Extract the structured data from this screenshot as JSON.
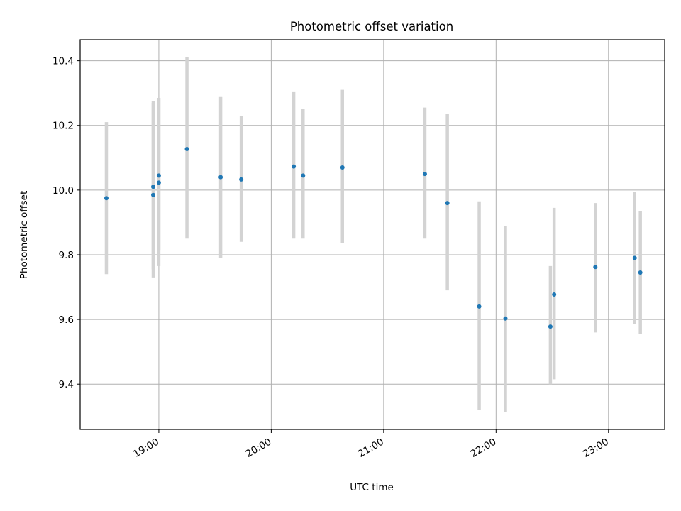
{
  "chart_data": {
    "type": "scatter",
    "title": "Photometric offset variation",
    "xlabel": "UTC time",
    "ylabel": "Photometric offset",
    "x_ticks": [
      "19:00",
      "20:00",
      "21:00",
      "22:00",
      "23:00"
    ],
    "y_ticks": [
      "9.4",
      "9.6",
      "9.8",
      "10.0",
      "10.2",
      "10.4"
    ],
    "xlim": [
      "18:18",
      "23:30"
    ],
    "ylim": [
      9.26,
      10.465
    ],
    "grid": true,
    "colors": {
      "points": "#1f77b4",
      "errorbars": "#d3d3d3",
      "grid": "#b0b0b0",
      "axes": "#000000"
    },
    "series": [
      {
        "x": [
          "18:32",
          "18:57",
          "18:57",
          "19:00",
          "19:00",
          "19:15",
          "19:33",
          "19:44",
          "20:12",
          "20:17",
          "20:38",
          "21:22",
          "21:34",
          "21:51",
          "22:05",
          "22:29",
          "22:31",
          "22:53",
          "23:14",
          "23:17"
        ],
        "y": [
          9.975,
          9.985,
          10.01,
          10.023,
          10.045,
          10.127,
          10.04,
          10.033,
          10.073,
          10.045,
          10.07,
          10.05,
          9.96,
          9.64,
          9.603,
          9.578,
          9.677,
          9.762,
          9.79,
          9.745
        ],
        "err_low": [
          9.74,
          9.73,
          9.755,
          9.815,
          9.765,
          9.85,
          9.79,
          9.84,
          9.85,
          9.85,
          9.835,
          9.85,
          9.69,
          9.32,
          9.315,
          9.4,
          9.415,
          9.56,
          9.585,
          9.555
        ],
        "err_high": [
          10.21,
          10.27,
          10.275,
          10.285,
          10.285,
          10.41,
          10.29,
          10.23,
          10.305,
          10.25,
          10.31,
          10.255,
          10.235,
          9.965,
          9.89,
          9.765,
          9.945,
          9.96,
          9.995,
          9.935
        ]
      }
    ]
  }
}
